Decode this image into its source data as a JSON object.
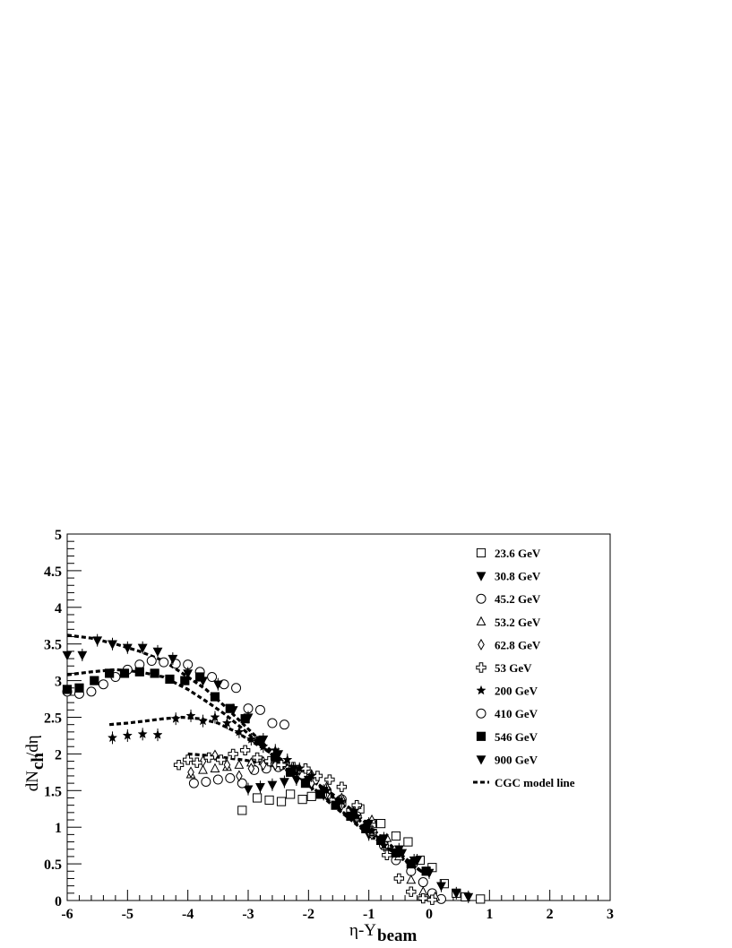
{
  "chart_data": {
    "type": "scatter",
    "title": "",
    "xlabel": "η-Y",
    "xlabel_sub": "beam",
    "ylabel": "dN",
    "ylabel_sub": "ch",
    "ylabel_tail": "/dη",
    "xlim": [
      -6,
      3
    ],
    "ylim": [
      0,
      5
    ],
    "x_ticks": [
      "-6",
      "-5",
      "-4",
      "-3",
      "-2",
      "-1",
      "0",
      "1",
      "2",
      "3"
    ],
    "y_ticks": [
      "0",
      "0.5",
      "1",
      "1.5",
      "2",
      "2.5",
      "3",
      "3.5",
      "4",
      "4.5",
      "5"
    ],
    "grid": false,
    "legend_position": "top-right",
    "series": [
      {
        "name": "23.6 GeV",
        "marker": "square-open",
        "x": [
          -3.1,
          -2.85,
          -2.65,
          -2.45,
          -2.3,
          -2.1,
          -1.95,
          -1.7,
          -1.45,
          -1.3,
          -1.15,
          -0.95,
          -0.8,
          -0.55,
          -0.35,
          -0.15,
          0.05,
          0.25,
          0.45,
          0.6,
          0.85
        ],
        "y": [
          1.23,
          1.4,
          1.37,
          1.35,
          1.45,
          1.38,
          1.42,
          1.45,
          1.35,
          1.2,
          1.25,
          1.05,
          1.05,
          0.88,
          0.8,
          0.55,
          0.45,
          0.23,
          0.1,
          0.05,
          0.02
        ]
      },
      {
        "name": "30.8 GeV",
        "marker": "triangle-down-filled",
        "x": [
          -3.0,
          -2.8,
          -2.6,
          -2.4,
          -2.2,
          -1.95,
          -1.75,
          -1.5,
          -1.25,
          -1.0,
          -0.75,
          -0.45,
          -0.2,
          0.0,
          0.2,
          0.45,
          0.65
        ],
        "y": [
          1.52,
          1.55,
          1.58,
          1.62,
          1.65,
          1.58,
          1.45,
          1.3,
          1.15,
          0.9,
          0.78,
          0.65,
          0.55,
          0.38,
          0.2,
          0.1,
          0.05
        ]
      },
      {
        "name": "45.2 GeV",
        "marker": "circle-open",
        "x": [
          -3.9,
          -3.7,
          -3.5,
          -3.3,
          -3.1,
          -2.9,
          -2.7,
          -2.5,
          -2.3,
          -2.1,
          -1.9,
          -1.7,
          -1.45,
          -1.2,
          -0.95,
          -0.75,
          -0.55,
          -0.3,
          -0.1,
          0.05,
          0.2
        ],
        "y": [
          1.6,
          1.62,
          1.65,
          1.67,
          1.6,
          1.78,
          1.8,
          1.82,
          1.78,
          1.72,
          1.65,
          1.5,
          1.38,
          1.15,
          0.92,
          0.75,
          0.55,
          0.4,
          0.25,
          0.1,
          0.02
        ]
      },
      {
        "name": "53.2 GeV",
        "marker": "triangle-up-open",
        "x": [
          -3.95,
          -3.75,
          -3.55,
          -3.35,
          -3.15,
          -2.95,
          -2.75,
          -2.55,
          -2.35,
          -2.15,
          -1.95,
          -1.7,
          -1.45,
          -1.2,
          -0.95,
          -0.7,
          -0.5,
          -0.3,
          -0.1,
          0.1
        ],
        "y": [
          1.72,
          1.78,
          1.8,
          1.82,
          1.85,
          1.88,
          1.9,
          1.87,
          1.85,
          1.8,
          1.72,
          1.55,
          1.4,
          1.3,
          1.1,
          0.85,
          0.6,
          0.28,
          0.12,
          0.05
        ]
      },
      {
        "name": "62.8 GeV",
        "marker": "diamond-open",
        "x": [
          -3.95,
          -3.75,
          -3.55,
          -3.35,
          -3.15,
          -2.95,
          -2.75,
          -2.55,
          -2.35,
          -2.15,
          -1.95,
          -1.7,
          -1.45,
          -1.2,
          -0.95
        ],
        "y": [
          1.75,
          1.9,
          1.98,
          1.85,
          1.7,
          1.8,
          1.85,
          1.85,
          1.8,
          1.78,
          1.6,
          1.45,
          1.3,
          1.12,
          0.9
        ]
      },
      {
        "name": "53 GeV",
        "marker": "cross-open",
        "x": [
          -4.15,
          -4.0,
          -3.85,
          -3.65,
          -3.45,
          -3.25,
          -3.05,
          -2.85,
          -2.65,
          -2.45,
          -2.25,
          -2.05,
          -1.85,
          -1.65,
          -1.45,
          -1.2,
          -0.95,
          -0.7,
          -0.5,
          -0.3,
          -0.1,
          0.05
        ],
        "y": [
          1.85,
          1.92,
          1.88,
          1.95,
          1.92,
          2.0,
          2.05,
          1.95,
          1.9,
          1.85,
          1.82,
          1.8,
          1.7,
          1.65,
          1.55,
          1.3,
          0.95,
          0.62,
          0.3,
          0.12,
          0.03,
          0.01
        ]
      },
      {
        "name": "200 GeV",
        "marker": "star",
        "x": [
          -5.25,
          -5.0,
          -4.75,
          -4.5,
          -4.2,
          -3.95,
          -3.75,
          -3.55,
          -3.35,
          -3.15,
          -2.95,
          -2.75,
          -2.55,
          -2.35,
          -2.15,
          -1.95,
          -1.7,
          -1.45,
          -1.2,
          -0.95,
          -0.75
        ],
        "y": [
          2.22,
          2.25,
          2.27,
          2.26,
          2.48,
          2.52,
          2.45,
          2.5,
          2.42,
          2.3,
          2.2,
          2.1,
          2.05,
          1.92,
          1.8,
          1.7,
          1.5,
          1.35,
          1.15,
          0.95,
          0.75
        ]
      },
      {
        "name": "410 GeV",
        "marker": "circle-open",
        "x": [
          -6.0,
          -5.8,
          -5.6,
          -5.4,
          -5.2,
          -5.0,
          -4.8,
          -4.6,
          -4.4,
          -4.2,
          -4.0,
          -3.8,
          -3.6,
          -3.4,
          -3.2,
          -3.0,
          -2.8,
          -2.6,
          -2.4
        ],
        "y": [
          2.85,
          2.82,
          2.85,
          2.95,
          3.05,
          3.15,
          3.22,
          3.27,
          3.25,
          3.23,
          3.22,
          3.12,
          3.05,
          2.95,
          2.9,
          2.62,
          2.6,
          2.42,
          2.4
        ]
      },
      {
        "name": "546 GeV",
        "marker": "square-filled",
        "x": [
          -6.0,
          -5.8,
          -5.55,
          -5.3,
          -5.05,
          -4.8,
          -4.55,
          -4.3,
          -4.05,
          -3.8,
          -3.55,
          -3.3,
          -3.05,
          -2.8,
          -2.55,
          -2.3,
          -2.05,
          -1.8,
          -1.55,
          -1.3,
          -1.05,
          -0.8,
          -0.55,
          -0.3,
          -0.05
        ],
        "y": [
          2.88,
          2.9,
          3.0,
          3.1,
          3.1,
          3.12,
          3.1,
          3.02,
          3.0,
          3.05,
          2.78,
          2.62,
          2.48,
          2.18,
          1.95,
          1.75,
          1.6,
          1.45,
          1.3,
          1.15,
          0.98,
          0.82,
          0.65,
          0.5,
          0.4
        ]
      },
      {
        "name": "900 GeV",
        "marker": "triangle-down-filled",
        "x": [
          -6.0,
          -5.75,
          -5.5,
          -5.25,
          -5.0,
          -4.75,
          -4.5,
          -4.25,
          -4.0,
          -3.75,
          -3.5,
          -3.25,
          -3.0,
          -2.75,
          -2.5,
          -2.25,
          -2.0,
          -1.75,
          -1.5,
          -1.25,
          -1.0,
          -0.75,
          -0.5,
          -0.25
        ],
        "y": [
          3.35,
          3.35,
          3.55,
          3.5,
          3.45,
          3.45,
          3.4,
          3.3,
          3.1,
          3.0,
          2.95,
          2.6,
          2.5,
          2.2,
          2.0,
          1.8,
          1.65,
          1.5,
          1.35,
          1.2,
          1.05,
          0.85,
          0.7,
          0.55
        ]
      },
      {
        "name": "CGC model line",
        "marker": "dashed-line",
        "curves": [
          {
            "x": [
              -6.0,
              -5.6,
              -5.2,
              -4.8,
              -4.4,
              -4.0,
              -3.7,
              -3.4,
              -3.1,
              -2.8,
              -2.5,
              -2.2,
              -1.9,
              -1.6,
              -1.3,
              -1.0,
              -0.7,
              -0.4,
              -0.1
            ],
            "y": [
              3.62,
              3.58,
              3.5,
              3.4,
              3.27,
              3.05,
              2.88,
              2.66,
              2.42,
              2.18,
              1.95,
              1.72,
              1.5,
              1.3,
              1.1,
              0.9,
              0.72,
              0.55,
              0.38
            ]
          },
          {
            "x": [
              -6.0,
              -5.6,
              -5.2,
              -4.8,
              -4.4,
              -4.0,
              -3.7,
              -3.4,
              -3.1,
              -2.8,
              -2.5,
              -2.2,
              -1.9,
              -1.6,
              -1.3,
              -1.0,
              -0.7,
              -0.4,
              -0.1
            ],
            "y": [
              3.08,
              3.12,
              3.15,
              3.12,
              3.05,
              2.88,
              2.72,
              2.55,
              2.35,
              2.12,
              1.92,
              1.72,
              1.52,
              1.32,
              1.12,
              0.92,
              0.72,
              0.55,
              0.38
            ]
          },
          {
            "x": [
              -5.3,
              -5.0,
              -4.7,
              -4.4,
              -4.1,
              -3.8,
              -3.5,
              -3.2,
              -2.9,
              -2.6,
              -2.3,
              -2.0,
              -1.7,
              -1.4,
              -1.1,
              -0.8,
              -0.5,
              -0.2
            ],
            "y": [
              2.4,
              2.42,
              2.45,
              2.48,
              2.5,
              2.48,
              2.42,
              2.3,
              2.15,
              2.0,
              1.85,
              1.68,
              1.48,
              1.28,
              1.05,
              0.82,
              0.6,
              0.42
            ]
          },
          {
            "x": [
              -4.0,
              -3.7,
              -3.4,
              -3.1,
              -2.8,
              -2.5,
              -2.2,
              -1.9,
              -1.6,
              -1.3,
              -1.0,
              -0.7,
              -0.4,
              -0.1
            ],
            "y": [
              2.0,
              1.98,
              1.95,
              1.92,
              1.88,
              1.83,
              1.75,
              1.62,
              1.45,
              1.25,
              1.02,
              0.8,
              0.58,
              0.38
            ]
          }
        ]
      }
    ]
  }
}
